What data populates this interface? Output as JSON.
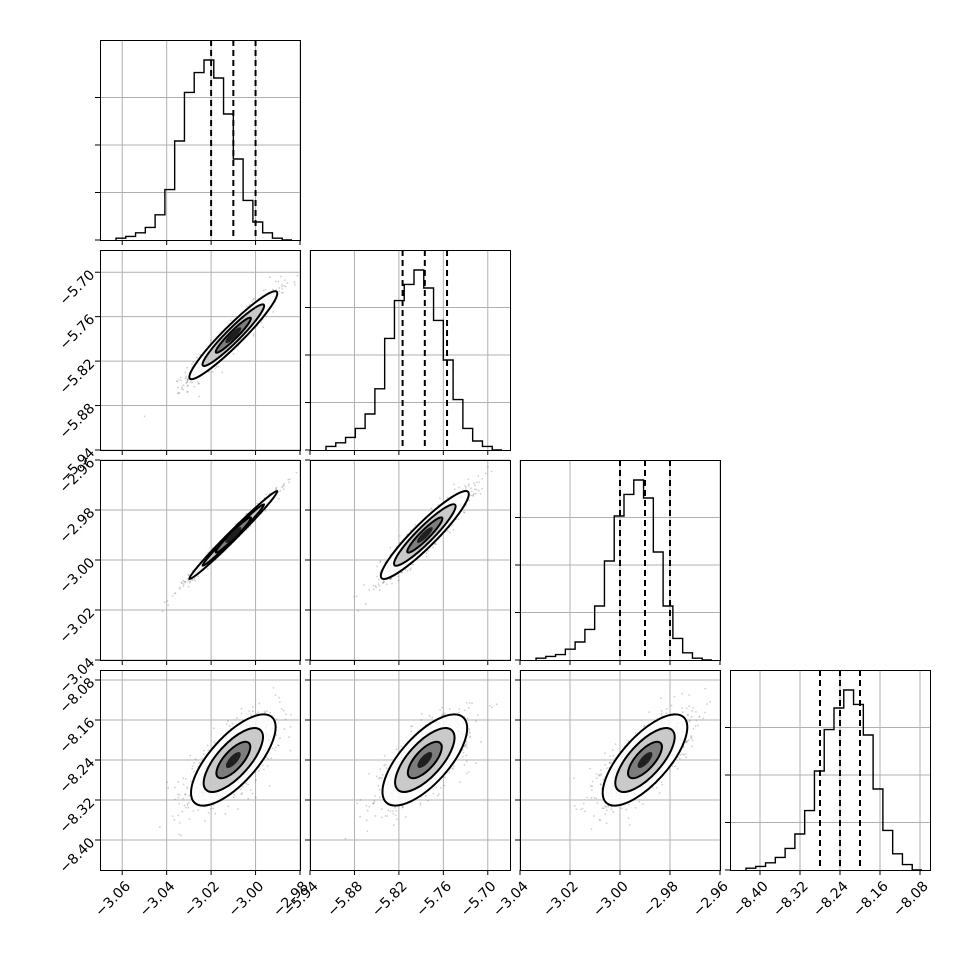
{
  "chart_data": {
    "type": "corner",
    "parameters": [
      {
        "index": 0,
        "range": [
          -3.07,
          -2.98
        ],
        "ticks": [
          "−3.06",
          "−3.04",
          "−3.02",
          "−3.00",
          "−2.98"
        ],
        "tick_values": [
          -3.06,
          -3.04,
          -3.02,
          -3.0,
          -2.98
        ],
        "median": -3.01,
        "quantiles": [
          -3.02,
          -3.01,
          -3.0
        ],
        "hist": [
          0.01,
          0.02,
          0.04,
          0.07,
          0.14,
          0.28,
          0.55,
          0.82,
          0.93,
          1.0,
          0.9,
          0.7,
          0.45,
          0.22,
          0.1,
          0.04,
          0.01,
          0.0
        ]
      },
      {
        "index": 1,
        "range": [
          -5.94,
          -5.67
        ],
        "ticks": [
          "−5.94",
          "−5.88",
          "−5.82",
          "−5.76",
          "−5.70"
        ],
        "tick_values": [
          -5.94,
          -5.88,
          -5.82,
          -5.76,
          -5.7
        ],
        "median": -5.785,
        "quantiles": [
          -5.815,
          -5.785,
          -5.755
        ],
        "hist": [
          0.02,
          0.04,
          0.07,
          0.12,
          0.2,
          0.34,
          0.62,
          0.83,
          0.92,
          1.0,
          0.9,
          0.72,
          0.5,
          0.28,
          0.12,
          0.05,
          0.02,
          0.0
        ]
      },
      {
        "index": 2,
        "range": [
          -3.04,
          -2.96
        ],
        "ticks": [
          "−3.04",
          "−3.02",
          "−3.00",
          "−2.98",
          "−2.96"
        ],
        "tick_values": [
          -3.04,
          -3.02,
          -3.0,
          -2.98,
          -2.96
        ],
        "median": -2.99,
        "quantiles": [
          -3.0,
          -2.99,
          -2.98
        ],
        "hist": [
          0.01,
          0.02,
          0.03,
          0.06,
          0.1,
          0.17,
          0.3,
          0.55,
          0.8,
          0.92,
          1.0,
          0.9,
          0.6,
          0.3,
          0.12,
          0.04,
          0.01,
          0.0
        ]
      },
      {
        "index": 3,
        "range": [
          -8.46,
          -8.06
        ],
        "ticks": [
          "−8.40",
          "−8.32",
          "−8.24",
          "−8.16",
          "−8.08"
        ],
        "tick_values": [
          -8.4,
          -8.32,
          -8.24,
          -8.16,
          -8.08
        ],
        "median": -8.24,
        "quantiles": [
          -8.28,
          -8.24,
          -8.2
        ],
        "hist": [
          0.01,
          0.02,
          0.04,
          0.07,
          0.12,
          0.2,
          0.33,
          0.55,
          0.78,
          0.9,
          1.0,
          0.92,
          0.75,
          0.45,
          0.22,
          0.09,
          0.03,
          0.0
        ]
      }
    ],
    "y_ticks_by_row": {
      "1": [
        "−5.70",
        "−5.76",
        "−5.82",
        "−5.88",
        "−5.94"
      ],
      "2": [
        "−2.96",
        "−2.98",
        "−3.00",
        "−3.02",
        "−3.04"
      ],
      "3": [
        "−8.08",
        "−8.16",
        "−8.24",
        "−8.32",
        "−8.40"
      ]
    },
    "y_tick_values_by_row": {
      "1": [
        -5.7,
        -5.76,
        -5.82,
        -5.88,
        -5.94
      ],
      "2": [
        -2.96,
        -2.98,
        -3.0,
        -3.02,
        -3.04
      ],
      "3": [
        -8.08,
        -8.16,
        -8.24,
        -8.32,
        -8.4
      ]
    },
    "correlations": {
      "1-0": 0.95,
      "2-0": 0.99,
      "2-1": 0.93,
      "3-0": 0.72,
      "3-1": 0.7,
      "3-2": 0.72
    },
    "grid": true,
    "colors": {
      "frame": "#000000",
      "grid": "#b0b0b0",
      "points": "#444444",
      "density": "#000000"
    }
  }
}
